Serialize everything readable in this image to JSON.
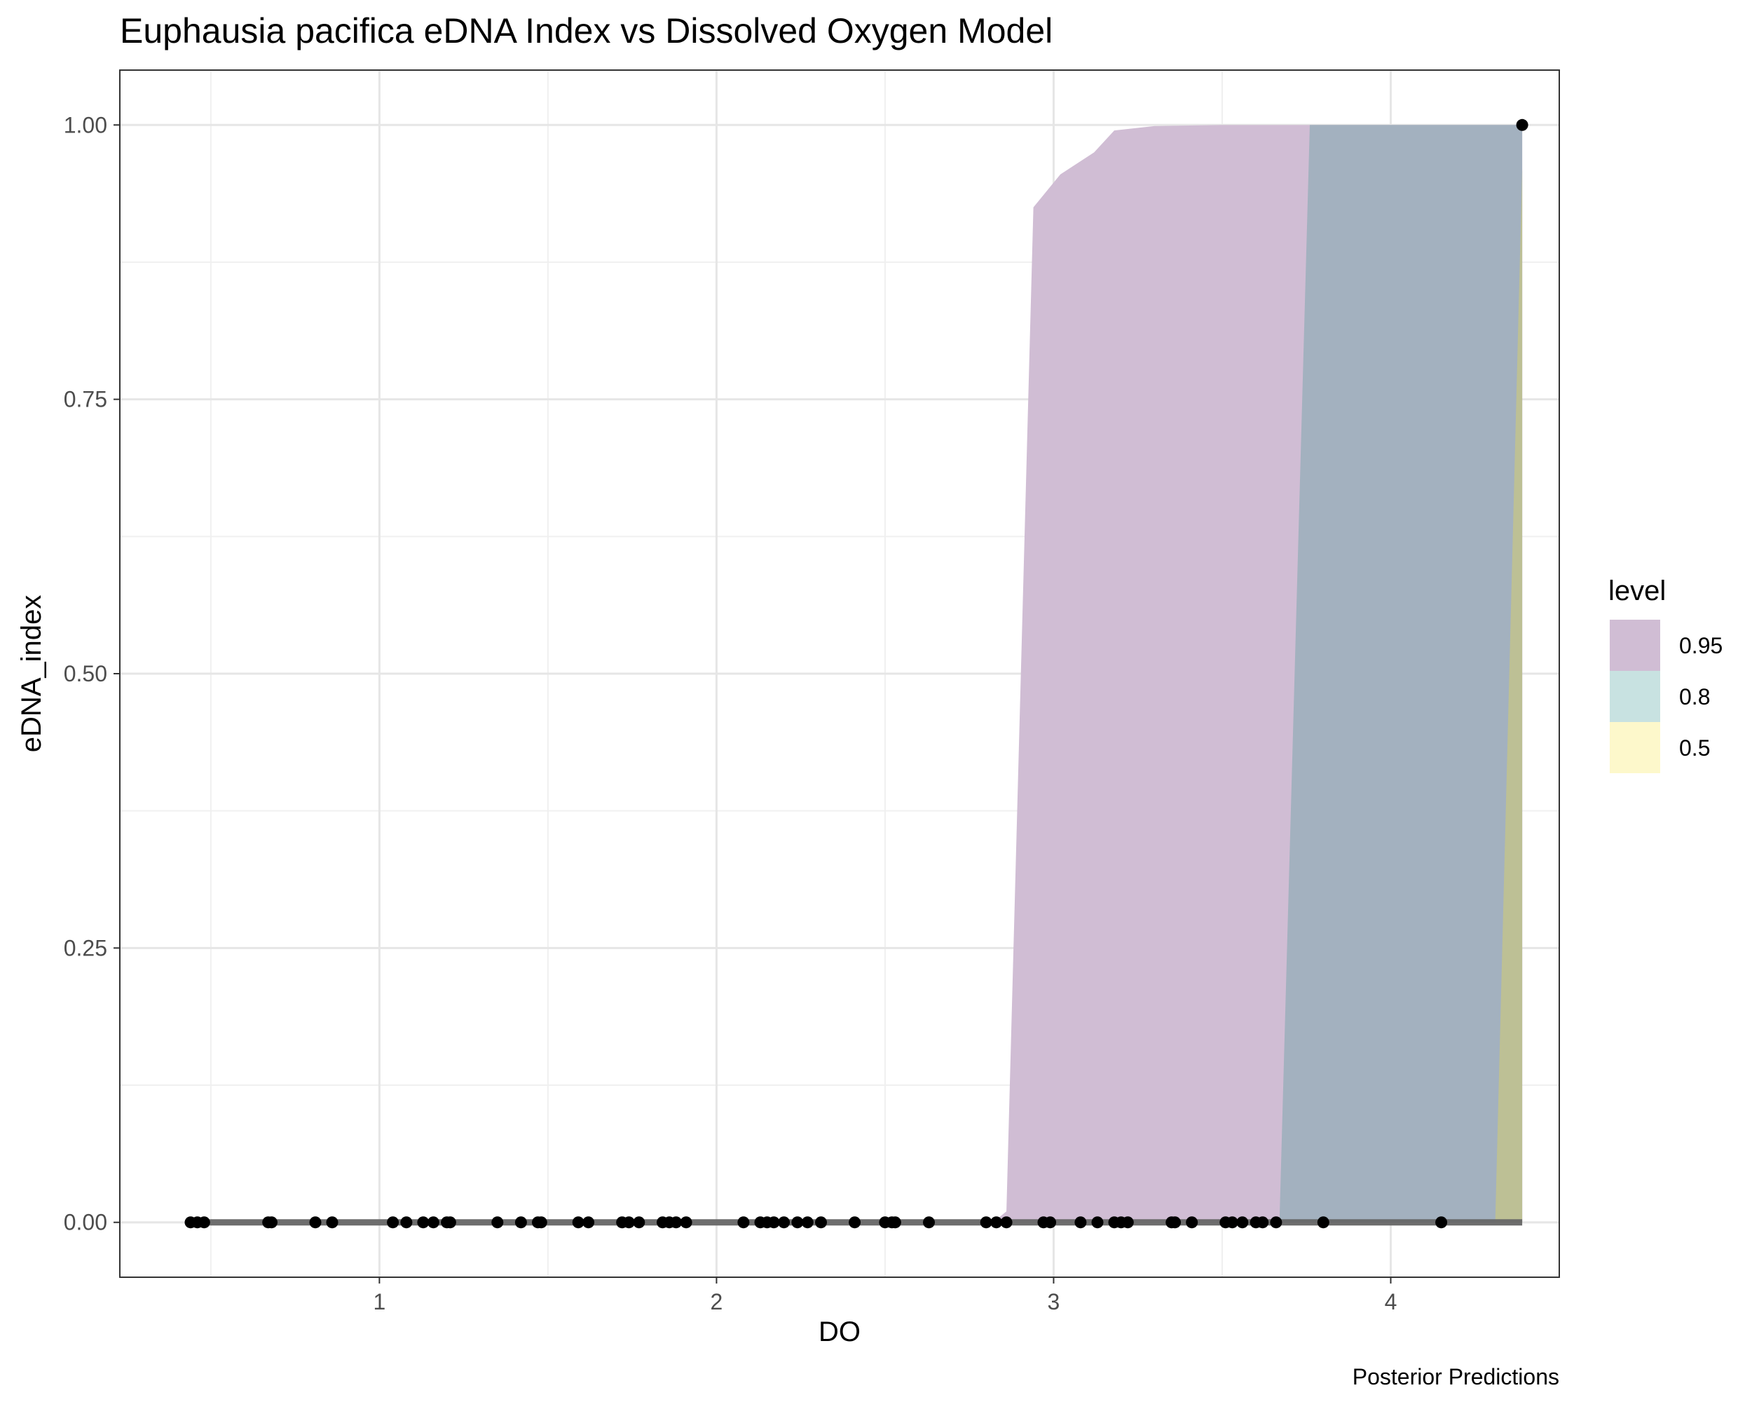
{
  "chart_data": {
    "type": "area",
    "title": "Euphausia pacifica eDNA Index vs Dissolved Oxygen Model",
    "xlabel": "DO",
    "ylabel": "eDNA_index",
    "caption": "Posterior Predictions",
    "xlim": [
      0.23,
      4.5
    ],
    "ylim": [
      -0.05,
      1.05
    ],
    "x_ticks": [
      1,
      2,
      3,
      4
    ],
    "x_tick_labels": [
      "1",
      "2",
      "3",
      "4"
    ],
    "y_ticks": [
      0,
      0.25,
      0.5,
      0.75,
      1
    ],
    "y_tick_labels": [
      "0.00",
      "0.25",
      "0.50",
      "0.75",
      "1.00"
    ],
    "grid": true,
    "legend": {
      "title": "level",
      "position": "right",
      "entries": [
        {
          "label": "0.95",
          "color": "#d0bdd4"
        },
        {
          "label": "0.8",
          "color": "#c8e2e1"
        },
        {
          "label": "0.5",
          "color": "#fdf8cb"
        }
      ]
    },
    "colors": {
      "band_95": "#d0bdd4",
      "band_80": "#a3b1bf",
      "band_50": "#bdc095",
      "median_line": "#666666",
      "points": "#000000"
    },
    "bands": [
      {
        "level": "0.95",
        "upper": [
          [
            2.82,
            0.0
          ],
          [
            2.86,
            0.01
          ],
          [
            2.94,
            0.925
          ],
          [
            3.02,
            0.955
          ],
          [
            3.12,
            0.975
          ],
          [
            3.18,
            0.995
          ],
          [
            3.3,
            0.999
          ],
          [
            3.5,
            1.0
          ],
          [
            4.39,
            1.0
          ]
        ],
        "lower": [
          [
            4.39,
            0.0
          ],
          [
            2.82,
            0.0
          ]
        ]
      },
      {
        "level": "0.8",
        "upper": [
          [
            3.67,
            0.0
          ],
          [
            3.76,
            1.0
          ],
          [
            4.39,
            1.0
          ]
        ],
        "lower": [
          [
            4.39,
            0.0
          ],
          [
            3.67,
            0.0
          ]
        ]
      },
      {
        "level": "0.5",
        "upper": [
          [
            4.31,
            0.0
          ],
          [
            4.39,
            0.96
          ]
        ],
        "lower": [
          [
            4.39,
            0.0
          ],
          [
            4.31,
            0.0
          ]
        ]
      }
    ],
    "median_line": {
      "x": [
        0.43,
        4.39
      ],
      "y": [
        0,
        0
      ]
    },
    "points": {
      "x": [
        0.44,
        0.46,
        0.48,
        0.67,
        0.68,
        0.81,
        0.86,
        1.04,
        1.08,
        1.13,
        1.16,
        1.2,
        1.21,
        1.35,
        1.42,
        1.47,
        1.48,
        1.59,
        1.62,
        1.72,
        1.74,
        1.77,
        1.84,
        1.86,
        1.88,
        1.91,
        2.08,
        2.13,
        2.15,
        2.17,
        2.2,
        2.24,
        2.27,
        2.31,
        2.41,
        2.5,
        2.52,
        2.53,
        2.63,
        2.8,
        2.83,
        2.86,
        2.97,
        2.99,
        3.08,
        3.13,
        3.18,
        3.2,
        3.22,
        3.35,
        3.36,
        3.41,
        3.51,
        3.53,
        3.56,
        3.6,
        3.62,
        3.66,
        3.8,
        4.15,
        4.39
      ],
      "y": [
        0,
        0,
        0,
        0,
        0,
        0,
        0,
        0,
        0,
        0,
        0,
        0,
        0,
        0,
        0,
        0,
        0,
        0,
        0,
        0,
        0,
        0,
        0,
        0,
        0,
        0,
        0,
        0,
        0,
        0,
        0,
        0,
        0,
        0,
        0,
        0,
        0,
        0,
        0,
        0,
        0,
        0,
        0,
        0,
        0,
        0,
        0,
        0,
        0,
        0,
        0,
        0,
        0,
        0,
        0,
        0,
        0,
        0,
        0,
        0,
        1
      ]
    }
  }
}
